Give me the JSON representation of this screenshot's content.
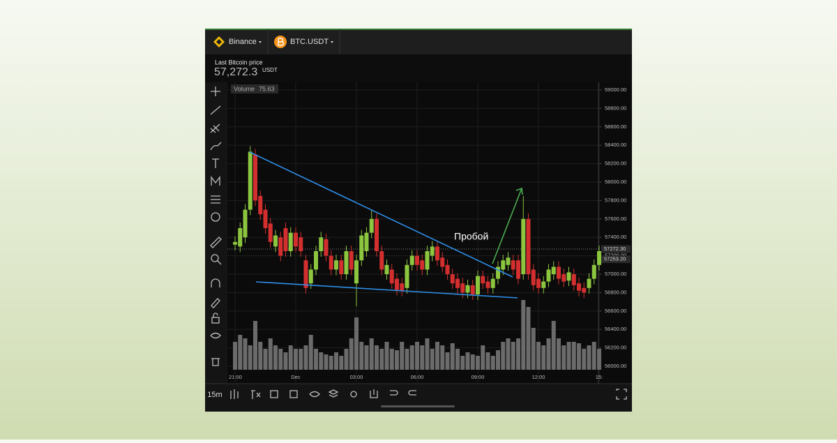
{
  "header": {
    "exchange": "Binance",
    "pair": "BTC.USDT"
  },
  "price_info": {
    "label": "Last Bitcoin price",
    "price": "57,272.3",
    "unit": "USDT"
  },
  "toolbar": {
    "interval": "15m"
  },
  "chart_data": {
    "type": "candlestick",
    "annotation": "Пробой",
    "volume_label": "Volume",
    "volume_value": 75.63,
    "categories": [
      "21:00",
      null,
      null,
      null,
      null,
      null,
      null,
      null,
      null,
      null,
      null,
      null,
      "Dec",
      null,
      null,
      null,
      null,
      null,
      null,
      null,
      null,
      null,
      null,
      null,
      "03:00",
      null,
      null,
      null,
      null,
      null,
      null,
      null,
      null,
      null,
      null,
      null,
      "06:00",
      null,
      null,
      null,
      null,
      null,
      null,
      null,
      null,
      null,
      null,
      null,
      "09:00",
      null,
      null,
      null,
      null,
      null,
      null,
      null,
      null,
      null,
      null,
      null,
      "12:00",
      null,
      null,
      null,
      null,
      null,
      null,
      null,
      null,
      null,
      null,
      null,
      "15:"
    ],
    "open": [
      57320,
      57300,
      57400,
      57700,
      58300,
      57850,
      57700,
      57550,
      57300,
      57400,
      57500,
      57250,
      57450,
      57400,
      57150,
      56900,
      57050,
      57250,
      57380,
      57200,
      57050,
      57150,
      57000,
      57250,
      56900,
      57150,
      57250,
      57450,
      57600,
      57250,
      57000,
      57050,
      56950,
      56900,
      56850,
      57100,
      57200,
      57150,
      57050,
      57200,
      57300,
      57180,
      57100,
      57000,
      56950,
      56900,
      56800,
      56880,
      56780,
      56980,
      56920,
      56850,
      56950,
      57050,
      57100,
      57150,
      57150,
      57000,
      57600,
      57050,
      56950,
      56850,
      56920,
      57000,
      57080,
      57000,
      56930,
      57000,
      56900,
      56850,
      56850,
      56950,
      57100
    ],
    "high": [
      57410,
      57560,
      57760,
      58390,
      58360,
      57910,
      57760,
      57610,
      57480,
      57460,
      57560,
      57510,
      57510,
      57460,
      57210,
      57110,
      57310,
      57460,
      57440,
      57260,
      57210,
      57210,
      57310,
      57310,
      57210,
      57480,
      57510,
      57700,
      57660,
      57310,
      57160,
      57110,
      57010,
      56960,
      57160,
      57260,
      57260,
      57210,
      57310,
      57360,
      57360,
      57240,
      57160,
      57060,
      57010,
      56960,
      56940,
      56940,
      57040,
      57040,
      56980,
      57010,
      57140,
      57210,
      57240,
      57210,
      57210,
      57850,
      57660,
      57110,
      57010,
      56980,
      57110,
      57140,
      57140,
      57060,
      57080,
      57060,
      56960,
      56910,
      57010,
      57160,
      57310
    ],
    "low": [
      57260,
      57240,
      57340,
      57640,
      57740,
      57590,
      57440,
      57290,
      57240,
      57140,
      57190,
      57190,
      57240,
      57190,
      56790,
      56840,
      56990,
      57190,
      57140,
      56990,
      56990,
      56940,
      56940,
      56990,
      56650,
      57090,
      57190,
      57390,
      57190,
      56990,
      56940,
      56840,
      56770,
      56760,
      56790,
      57040,
      57040,
      56990,
      56990,
      57140,
      57090,
      57020,
      56940,
      56840,
      56790,
      56740,
      56740,
      56720,
      56720,
      56840,
      56790,
      56790,
      56890,
      56990,
      57040,
      56990,
      56890,
      56940,
      56940,
      56820,
      56790,
      56790,
      56860,
      56940,
      56890,
      56860,
      56870,
      56820,
      56760,
      56740,
      56790,
      56890,
      57040
    ],
    "close": [
      57350,
      57500,
      57700,
      58330,
      57800,
      57650,
      57500,
      57350,
      57420,
      57200,
      57250,
      57450,
      57300,
      57250,
      56850,
      57050,
      57250,
      57400,
      57200,
      57050,
      57150,
      57000,
      57250,
      57050,
      57150,
      57420,
      57450,
      57600,
      57250,
      57050,
      57100,
      56900,
      56830,
      56820,
      57100,
      57200,
      57100,
      57050,
      57250,
      57300,
      57150,
      57080,
      57000,
      56900,
      56850,
      56800,
      56880,
      56780,
      56980,
      56900,
      56850,
      56950,
      57080,
      57150,
      57180,
      57050,
      56950,
      57600,
      57000,
      56880,
      56850,
      56920,
      57050,
      57080,
      56950,
      56920,
      57020,
      56880,
      56820,
      56800,
      56950,
      57100,
      57250
    ],
    "volume": [
      40,
      50,
      45,
      35,
      70,
      40,
      30,
      45,
      35,
      30,
      25,
      35,
      30,
      30,
      35,
      50,
      30,
      25,
      22,
      20,
      25,
      20,
      30,
      45,
      75,
      40,
      35,
      45,
      35,
      30,
      40,
      30,
      28,
      40,
      30,
      35,
      40,
      35,
      45,
      30,
      40,
      35,
      25,
      38,
      30,
      20,
      25,
      22,
      20,
      35,
      25,
      20,
      28,
      40,
      45,
      40,
      45,
      100,
      90,
      60,
      40,
      35,
      45,
      70,
      45,
      35,
      40,
      40,
      38,
      30,
      35,
      40,
      30
    ],
    "up_color": "#8cc63f",
    "down_color": "#d32f2f",
    "volume_color": "#6b6b6b",
    "ylim": [
      55826,
      59083
    ],
    "yticks": [
      {
        "value": 56000,
        "label": "56000.00"
      },
      {
        "value": 56200,
        "label": "56200.00"
      },
      {
        "value": 56400,
        "label": "56400.00"
      },
      {
        "value": 56600,
        "label": "56600.00"
      },
      {
        "value": 56800,
        "label": "56800.00"
      },
      {
        "value": 57000,
        "label": "57000.00"
      },
      {
        "value": 57200,
        "label": "57200.00"
      },
      {
        "value": 57400,
        "label": "57400.00"
      },
      {
        "value": 57600,
        "label": "57600.00"
      },
      {
        "value": 57800,
        "label": "57800.00"
      },
      {
        "value": 58000,
        "label": "58000.00"
      },
      {
        "value": 58200,
        "label": "58200.00"
      },
      {
        "value": 58400,
        "label": "58400.00"
      },
      {
        "value": 58600,
        "label": "58600.00"
      },
      {
        "value": 58800,
        "label": "58800.00"
      },
      {
        "value": 59000,
        "label": "59000.00"
      }
    ],
    "price_markers": [
      {
        "value": 57272.3,
        "label": "57272.30"
      },
      {
        "value": 57253.2,
        "label": "57253.20"
      }
    ],
    "grid": true
  }
}
